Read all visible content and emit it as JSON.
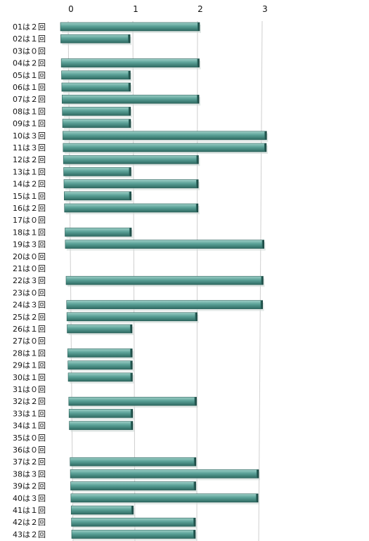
{
  "chart_data": {
    "type": "bar",
    "orientation": "horizontal",
    "categories": [
      "01は２回",
      "02は１回",
      "03は０回",
      "04は２回",
      "05は１回",
      "06は１回",
      "07は２回",
      "08は１回",
      "09は１回",
      "10は３回",
      "11は３回",
      "12は２回",
      "13は１回",
      "14は２回",
      "15は１回",
      "16は２回",
      "17は０回",
      "18は１回",
      "19は３回",
      "20は０回",
      "21は０回",
      "22は３回",
      "23は０回",
      "24は３回",
      "25は２回",
      "26は１回",
      "27は０回",
      "28は１回",
      "29は１回",
      "30は１回",
      "31は０回",
      "32は２回",
      "33は１回",
      "34は１回",
      "35は０回",
      "36は０回",
      "37は２回",
      "38は３回",
      "39は２回",
      "40は３回",
      "41は１回",
      "42は２回",
      "43は２回"
    ],
    "values": [
      2,
      1,
      0,
      2,
      1,
      1,
      2,
      1,
      1,
      3,
      3,
      2,
      1,
      2,
      1,
      2,
      0,
      1,
      3,
      0,
      0,
      3,
      0,
      3,
      2,
      1,
      0,
      1,
      1,
      1,
      0,
      2,
      1,
      1,
      0,
      0,
      2,
      3,
      2,
      3,
      1,
      2,
      2
    ],
    "x_ticks": [
      "0",
      "1",
      "2",
      "3"
    ],
    "xlim": [
      0,
      3
    ],
    "grid": true,
    "bar_color": "#3c8a80"
  }
}
